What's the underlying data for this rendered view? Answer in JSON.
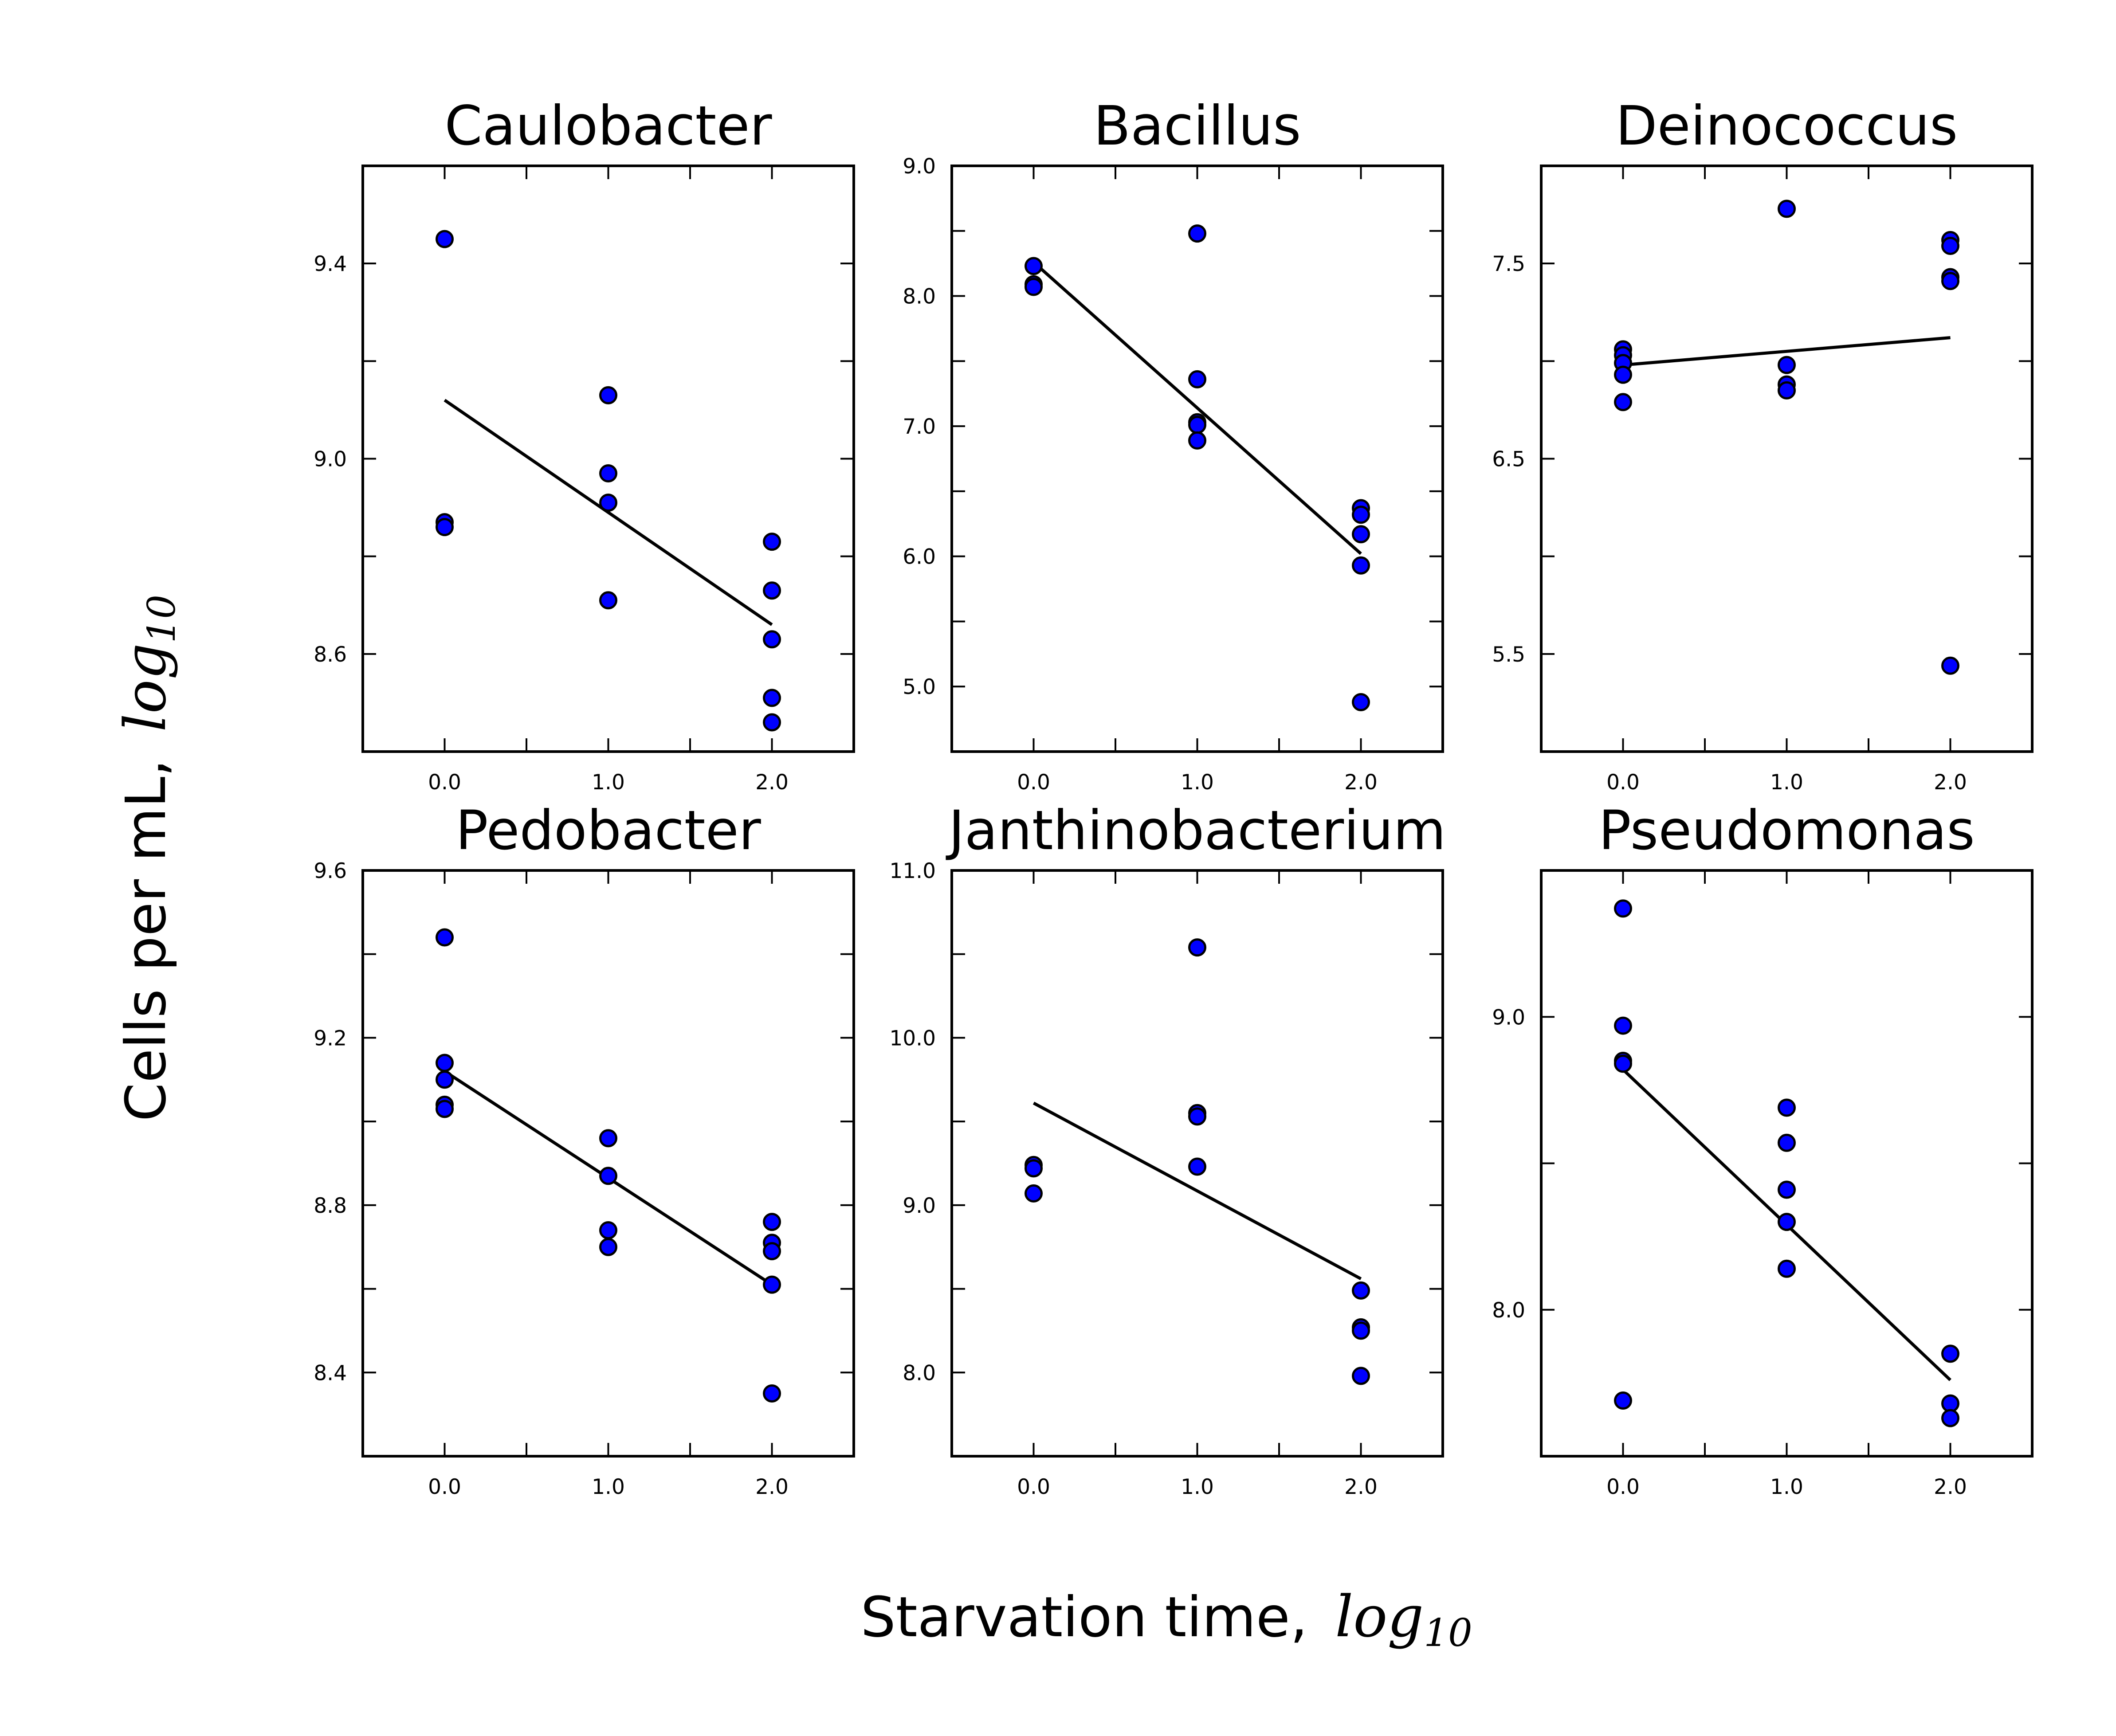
{
  "figure": {
    "ylabel": "Cells per mL,",
    "ylabel_math": "log",
    "ylabel_math_sub": "10",
    "xlabel": "Starvation time,",
    "xlabel_math": "log",
    "xlabel_math_sub": "10",
    "colors": {
      "marker": "#0000ff",
      "marker_edge": "#000000",
      "line": "#000000"
    }
  },
  "chart_data": [
    {
      "type": "scatter",
      "title": "Caulobacter",
      "xlim": [
        -0.5,
        2.5
      ],
      "ylim": [
        8.4,
        9.6
      ],
      "xticks": [
        0.0,
        1.0,
        2.0
      ],
      "xtick_labels": [
        "0.0",
        "1.0",
        "2.0"
      ],
      "xticks_minor": [
        0.5,
        1.5
      ],
      "yticks": [
        8.6,
        9.0,
        9.4
      ],
      "ytick_labels": [
        "8.6",
        "9.0",
        "9.4"
      ],
      "yticks_minor": [
        8.8,
        9.2
      ],
      "points": [
        [
          0,
          9.45
        ],
        [
          0,
          8.87
        ],
        [
          0,
          8.86
        ],
        [
          1,
          9.13
        ],
        [
          1,
          8.97
        ],
        [
          1,
          8.91
        ],
        [
          1,
          8.71
        ],
        [
          2,
          8.83
        ],
        [
          2,
          8.73
        ],
        [
          2,
          8.63
        ],
        [
          2,
          8.51
        ],
        [
          2,
          8.46
        ]
      ],
      "fit": [
        [
          0,
          9.12
        ],
        [
          2,
          8.66
        ]
      ]
    },
    {
      "type": "scatter",
      "title": "Bacillus",
      "xlim": [
        -0.5,
        2.5
      ],
      "ylim": [
        4.5,
        9.0
      ],
      "xticks": [
        0.0,
        1.0,
        2.0
      ],
      "xtick_labels": [
        "0.0",
        "1.0",
        "2.0"
      ],
      "xticks_minor": [
        0.5,
        1.5
      ],
      "yticks": [
        5.0,
        6.0,
        7.0,
        8.0,
        9.0
      ],
      "ytick_labels": [
        "5.0",
        "6.0",
        "7.0",
        "8.0",
        "9.0"
      ],
      "yticks_minor": [
        5.5,
        6.5,
        7.5,
        8.5
      ],
      "points": [
        [
          0,
          8.23
        ],
        [
          0,
          8.09
        ],
        [
          0,
          8.07
        ],
        [
          1,
          8.48
        ],
        [
          1,
          7.36
        ],
        [
          1,
          7.03
        ],
        [
          1,
          7.01
        ],
        [
          1,
          6.89
        ],
        [
          2,
          6.37
        ],
        [
          2,
          6.32
        ],
        [
          2,
          6.17
        ],
        [
          2,
          5.93
        ],
        [
          2,
          4.88
        ]
      ],
      "fit": [
        [
          0,
          8.26
        ],
        [
          2,
          6.02
        ]
      ]
    },
    {
      "type": "scatter",
      "title": "Deinococcus",
      "xlim": [
        -0.5,
        2.5
      ],
      "ylim": [
        5.0,
        8.0
      ],
      "xticks": [
        0.0,
        1.0,
        2.0
      ],
      "xtick_labels": [
        "0.0",
        "1.0",
        "2.0"
      ],
      "xticks_minor": [
        0.5,
        1.5
      ],
      "yticks": [
        5.5,
        6.5,
        7.5
      ],
      "ytick_labels": [
        "5.5",
        "6.5",
        "7.5"
      ],
      "yticks_minor": [
        6.0,
        7.0
      ],
      "points": [
        [
          0,
          7.06
        ],
        [
          0,
          7.03
        ],
        [
          0,
          6.99
        ],
        [
          0,
          6.93
        ],
        [
          0,
          6.79
        ],
        [
          1,
          7.78
        ],
        [
          1,
          6.98
        ],
        [
          1,
          6.88
        ],
        [
          1,
          6.85
        ],
        [
          2,
          7.62
        ],
        [
          2,
          7.59
        ],
        [
          2,
          7.43
        ],
        [
          2,
          7.41
        ],
        [
          2,
          5.44
        ]
      ],
      "fit": [
        [
          0,
          6.98
        ],
        [
          2,
          7.12
        ]
      ]
    },
    {
      "type": "scatter",
      "title": "Pedobacter",
      "xlim": [
        -0.5,
        2.5
      ],
      "ylim": [
        8.2,
        9.6
      ],
      "xticks": [
        0.0,
        1.0,
        2.0
      ],
      "xtick_labels": [
        "0.0",
        "1.0",
        "2.0"
      ],
      "xticks_minor": [
        0.5,
        1.5
      ],
      "yticks": [
        8.4,
        8.8,
        9.2,
        9.6
      ],
      "ytick_labels": [
        "8.4",
        "8.8",
        "9.2",
        "9.6"
      ],
      "yticks_minor": [
        8.6,
        9.0,
        9.4
      ],
      "points": [
        [
          0,
          9.44
        ],
        [
          0,
          9.14
        ],
        [
          0,
          9.1
        ],
        [
          0,
          9.04
        ],
        [
          0,
          9.03
        ],
        [
          1,
          8.96
        ],
        [
          1,
          8.87
        ],
        [
          1,
          8.74
        ],
        [
          1,
          8.7
        ],
        [
          2,
          8.76
        ],
        [
          2,
          8.71
        ],
        [
          2,
          8.69
        ],
        [
          2,
          8.61
        ],
        [
          2,
          8.35
        ]
      ],
      "fit": [
        [
          0,
          9.12
        ],
        [
          2,
          8.61
        ]
      ]
    },
    {
      "type": "scatter",
      "title": "Janthinobacterium",
      "xlim": [
        -0.5,
        2.5
      ],
      "ylim": [
        7.5,
        11.0
      ],
      "xticks": [
        0.0,
        1.0,
        2.0
      ],
      "xtick_labels": [
        "0.0",
        "1.0",
        "2.0"
      ],
      "xticks_minor": [
        0.5,
        1.5
      ],
      "yticks": [
        8.0,
        9.0,
        10.0,
        11.0
      ],
      "ytick_labels": [
        "8.0",
        "9.0",
        "10.0",
        "11.0"
      ],
      "yticks_minor": [
        8.5,
        9.5,
        10.5
      ],
      "points": [
        [
          0,
          9.24
        ],
        [
          0,
          9.22
        ],
        [
          0,
          9.07
        ],
        [
          1,
          10.54
        ],
        [
          1,
          9.55
        ],
        [
          1,
          9.53
        ],
        [
          1,
          9.23
        ],
        [
          2,
          8.49
        ],
        [
          2,
          8.27
        ],
        [
          2,
          8.25
        ],
        [
          2,
          7.98
        ]
      ],
      "fit": [
        [
          0,
          9.61
        ],
        [
          2,
          8.56
        ]
      ]
    },
    {
      "type": "scatter",
      "title": "Pseudomonas",
      "xlim": [
        -0.5,
        2.5
      ],
      "ylim": [
        7.5,
        9.5
      ],
      "xticks": [
        0.0,
        1.0,
        2.0
      ],
      "xtick_labels": [
        "0.0",
        "1.0",
        "2.0"
      ],
      "xticks_minor": [
        0.5,
        1.5
      ],
      "yticks": [
        8.0,
        9.0
      ],
      "ytick_labels": [
        "8.0",
        "9.0"
      ],
      "yticks_minor": [
        7.5,
        8.5,
        9.5
      ],
      "points": [
        [
          0,
          9.37
        ],
        [
          0,
          8.97
        ],
        [
          0,
          8.85
        ],
        [
          0,
          8.84
        ],
        [
          0,
          7.69
        ],
        [
          1,
          8.69
        ],
        [
          1,
          8.57
        ],
        [
          1,
          8.41
        ],
        [
          1,
          8.3
        ],
        [
          1,
          8.14
        ],
        [
          2,
          7.85
        ],
        [
          2,
          7.68
        ],
        [
          2,
          7.63
        ]
      ],
      "fit": [
        [
          0,
          8.82
        ],
        [
          2,
          7.76
        ]
      ]
    }
  ]
}
